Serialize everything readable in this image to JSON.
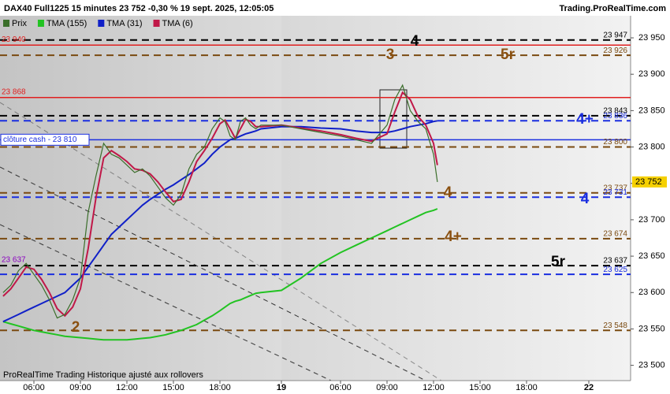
{
  "chart_data": {
    "type": "line",
    "title": "DAX40 Full1225 15 minutes 23 752 -0,30 % 19 sept. 2025, 12:05:05",
    "source": "Trading.ProRealTime.com",
    "footer": "ProRealTime Trading  Historique ajusté aux rollovers",
    "x": [
      4,
      4.5,
      5,
      5.5,
      6,
      6.5,
      7,
      7.5,
      8,
      8.5,
      9,
      9.5,
      10,
      10.5,
      11,
      11.5,
      12,
      12.5,
      13,
      13.5,
      14,
      14.5,
      15,
      15.5,
      16,
      16.5,
      17,
      17.5,
      18,
      18.5,
      19,
      19.5,
      20,
      20.5,
      21,
      21.5,
      22,
      24,
      26,
      28,
      30,
      31,
      32,
      33,
      33.5,
      34,
      34.5,
      35,
      35.5,
      36,
      36.25
    ],
    "xlim": [
      3.8,
      52
    ],
    "xticks": [
      {
        "value": 6,
        "label": "06:00"
      },
      {
        "value": 9,
        "label": "09:00"
      },
      {
        "value": 12,
        "label": "12:00"
      },
      {
        "value": 15,
        "label": "15:00"
      },
      {
        "value": 18,
        "label": "18:00"
      },
      {
        "value": 24,
        "label": "19"
      },
      {
        "value": 30,
        "label": "06:00"
      },
      {
        "value": 33,
        "label": "09:00"
      },
      {
        "value": 36,
        "label": "12:00"
      },
      {
        "value": 39,
        "label": "15:00"
      },
      {
        "value": 42,
        "label": "18:00"
      },
      {
        "value": 48,
        "label": "22"
      }
    ],
    "ylim": [
      23479,
      24002
    ],
    "yticks": [
      {
        "value": 23500,
        "label": "23 500"
      },
      {
        "value": 23550,
        "label": "23 550"
      },
      {
        "value": 23600,
        "label": "23 600"
      },
      {
        "value": 23650,
        "label": "23 650"
      },
      {
        "value": 23700,
        "label": "23 700"
      },
      {
        "value": 23750,
        "label": "23 750"
      },
      {
        "value": 23800,
        "label": "23 800"
      },
      {
        "value": 23850,
        "label": "23 850"
      },
      {
        "value": 23900,
        "label": "23 900"
      },
      {
        "value": 23950,
        "label": "23 950"
      }
    ],
    "series": [
      {
        "name": "Prix",
        "color": "#3a6e2a",
        "values": [
          23600,
          23610,
          23630,
          23640,
          23625,
          23610,
          23590,
          23565,
          23570,
          23590,
          23620,
          23710,
          23760,
          23805,
          23790,
          23785,
          23775,
          23765,
          23770,
          23760,
          23745,
          23730,
          23720,
          23735,
          23770,
          23790,
          23800,
          23825,
          23840,
          23835,
          23815,
          23810,
          23835,
          23840,
          23830,
          23825,
          23830,
          23830,
          23825,
          23820,
          23815,
          23810,
          23805,
          23830,
          23865,
          23885,
          23850,
          23835,
          23825,
          23790,
          23752
        ]
      },
      {
        "name": "TMA (155)",
        "color": "#22c322",
        "values": [
          23560,
          23557,
          23554,
          23551,
          23548,
          23546,
          23544,
          23542,
          23540,
          23539,
          23538,
          23537,
          23536,
          23535,
          23535,
          23535,
          23535,
          23536,
          23537,
          23538,
          23540,
          23542,
          23545,
          23548,
          23552,
          23556,
          23562,
          23568,
          23575,
          23580,
          23585,
          23588,
          23590,
          23593,
          23596,
          23599,
          23600,
          23603,
          23620,
          23640,
          23655,
          23665,
          23675,
          23685,
          23690,
          23695,
          23700,
          23705,
          23710,
          23713,
          23715
        ]
      },
      {
        "name": "TMA (31)",
        "color": "#1020c8",
        "values": [
          23560,
          23565,
          23570,
          23575,
          23580,
          23585,
          23590,
          23595,
          23600,
          23610,
          23620,
          23635,
          23650,
          23665,
          23680,
          23690,
          23700,
          23710,
          23720,
          23728,
          23735,
          23742,
          23748,
          23755,
          23762,
          23770,
          23778,
          23790,
          23800,
          23805,
          23810,
          23812,
          23815,
          23818,
          23820,
          23822,
          23825,
          23828,
          23828,
          23826,
          23825,
          23822,
          23820,
          23820,
          23822,
          23825,
          23828,
          23830,
          23832,
          23835,
          23836
        ]
      },
      {
        "name": "TMA (6)",
        "color": "#c01848",
        "values": [
          23595,
          23605,
          23620,
          23635,
          23632,
          23618,
          23600,
          23578,
          23568,
          23580,
          23605,
          23660,
          23730,
          23785,
          23795,
          23788,
          23780,
          23770,
          23768,
          23763,
          23752,
          23738,
          23725,
          23728,
          23752,
          23780,
          23795,
          23812,
          23832,
          23837,
          23825,
          23812,
          23825,
          23838,
          23835,
          23828,
          23828,
          23830,
          23826,
          23822,
          23817,
          23812,
          23808,
          23818,
          23848,
          23875,
          23865,
          23842,
          23830,
          23805,
          23775
        ]
      }
    ],
    "levels": [
      {
        "value": 23947,
        "label": "23 947",
        "color": "#000000",
        "style": "dashed",
        "side": "right"
      },
      {
        "value": 23940,
        "label": "23 940",
        "color": "#e02020",
        "style": "solid",
        "side": "left"
      },
      {
        "value": 23926,
        "label": "23 926",
        "color": "#7a4a10",
        "style": "dashed",
        "side": "right"
      },
      {
        "value": 23868,
        "label": "23 868",
        "color": "#e02020",
        "style": "solid",
        "side": "left"
      },
      {
        "value": 23843,
        "label": "23 843",
        "color": "#000000",
        "style": "dashed",
        "side": "right"
      },
      {
        "value": 23836,
        "label": "23 836",
        "color": "#1a2ee0",
        "style": "dashed",
        "side": "right"
      },
      {
        "value": 23810,
        "label": "clôture cash -  23 810",
        "color": "#1a2ee0",
        "style": "solid",
        "side": "left"
      },
      {
        "value": 23800,
        "label": "23 800",
        "color": "#7a4a10",
        "style": "dashed",
        "side": "right"
      },
      {
        "value": 23737,
        "label": "23 737",
        "color": "#7a4a10",
        "style": "dashed",
        "side": "right"
      },
      {
        "value": 23731,
        "label": "23 731",
        "color": "#1a2ee0",
        "style": "dashed",
        "side": "right"
      },
      {
        "value": 23674,
        "label": "23 674",
        "color": "#7a4a10",
        "style": "dashed",
        "side": "right"
      },
      {
        "value": 23637,
        "label": "23 637",
        "color": "#000000",
        "style": "dashed",
        "side": "right"
      },
      {
        "value": 23625,
        "label": "23 625",
        "color": "#1a2ee0",
        "style": "dashed",
        "side": "right"
      },
      {
        "value": 23548,
        "label": "23 548",
        "color": "#7a4a10",
        "style": "dashed",
        "side": "right"
      }
    ],
    "left_label": {
      "value": 23637,
      "label": "23 637",
      "color": "#8a00c0"
    },
    "last_price": {
      "value": 23752,
      "label": "23 752"
    },
    "annotations": [
      {
        "text": "4",
        "color": "#000000"
      },
      {
        "text": "3",
        "color": "#8a5010"
      },
      {
        "text": "5r",
        "color": "#8a5010"
      },
      {
        "text": "4+",
        "color": "#1a2ee0"
      },
      {
        "text": "4",
        "color": "#8a5010"
      },
      {
        "text": "4",
        "color": "#1a2ee0"
      },
      {
        "text": "4+",
        "color": "#8a5010"
      },
      {
        "text": "5r",
        "color": "#000000"
      },
      {
        "text": "2",
        "color": "#8a5010"
      }
    ]
  }
}
